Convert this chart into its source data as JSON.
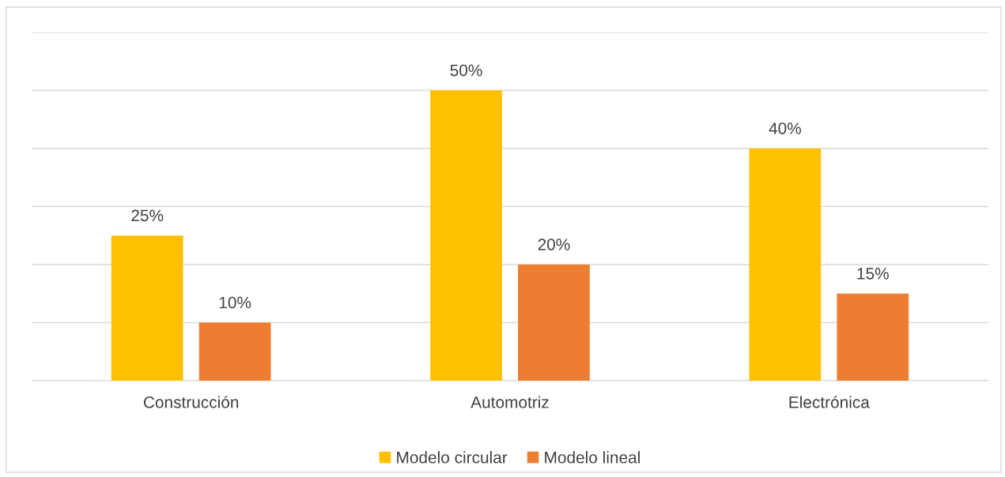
{
  "chart_data": {
    "type": "bar",
    "categories": [
      "Construcción",
      "Automotriz",
      "Electrónica"
    ],
    "series": [
      {
        "name": "Modelo circular",
        "color": "#ffc000",
        "values": [
          25,
          50,
          40
        ],
        "value_labels": [
          "25%",
          "50%",
          "40%"
        ]
      },
      {
        "name": "Modelo lineal",
        "color": "#ed7d31",
        "values": [
          10,
          20,
          15
        ],
        "value_labels": [
          "10%",
          "20%",
          "15%"
        ]
      }
    ],
    "grid": "y",
    "legend": "bottom",
    "tick_labels": "x"
  }
}
